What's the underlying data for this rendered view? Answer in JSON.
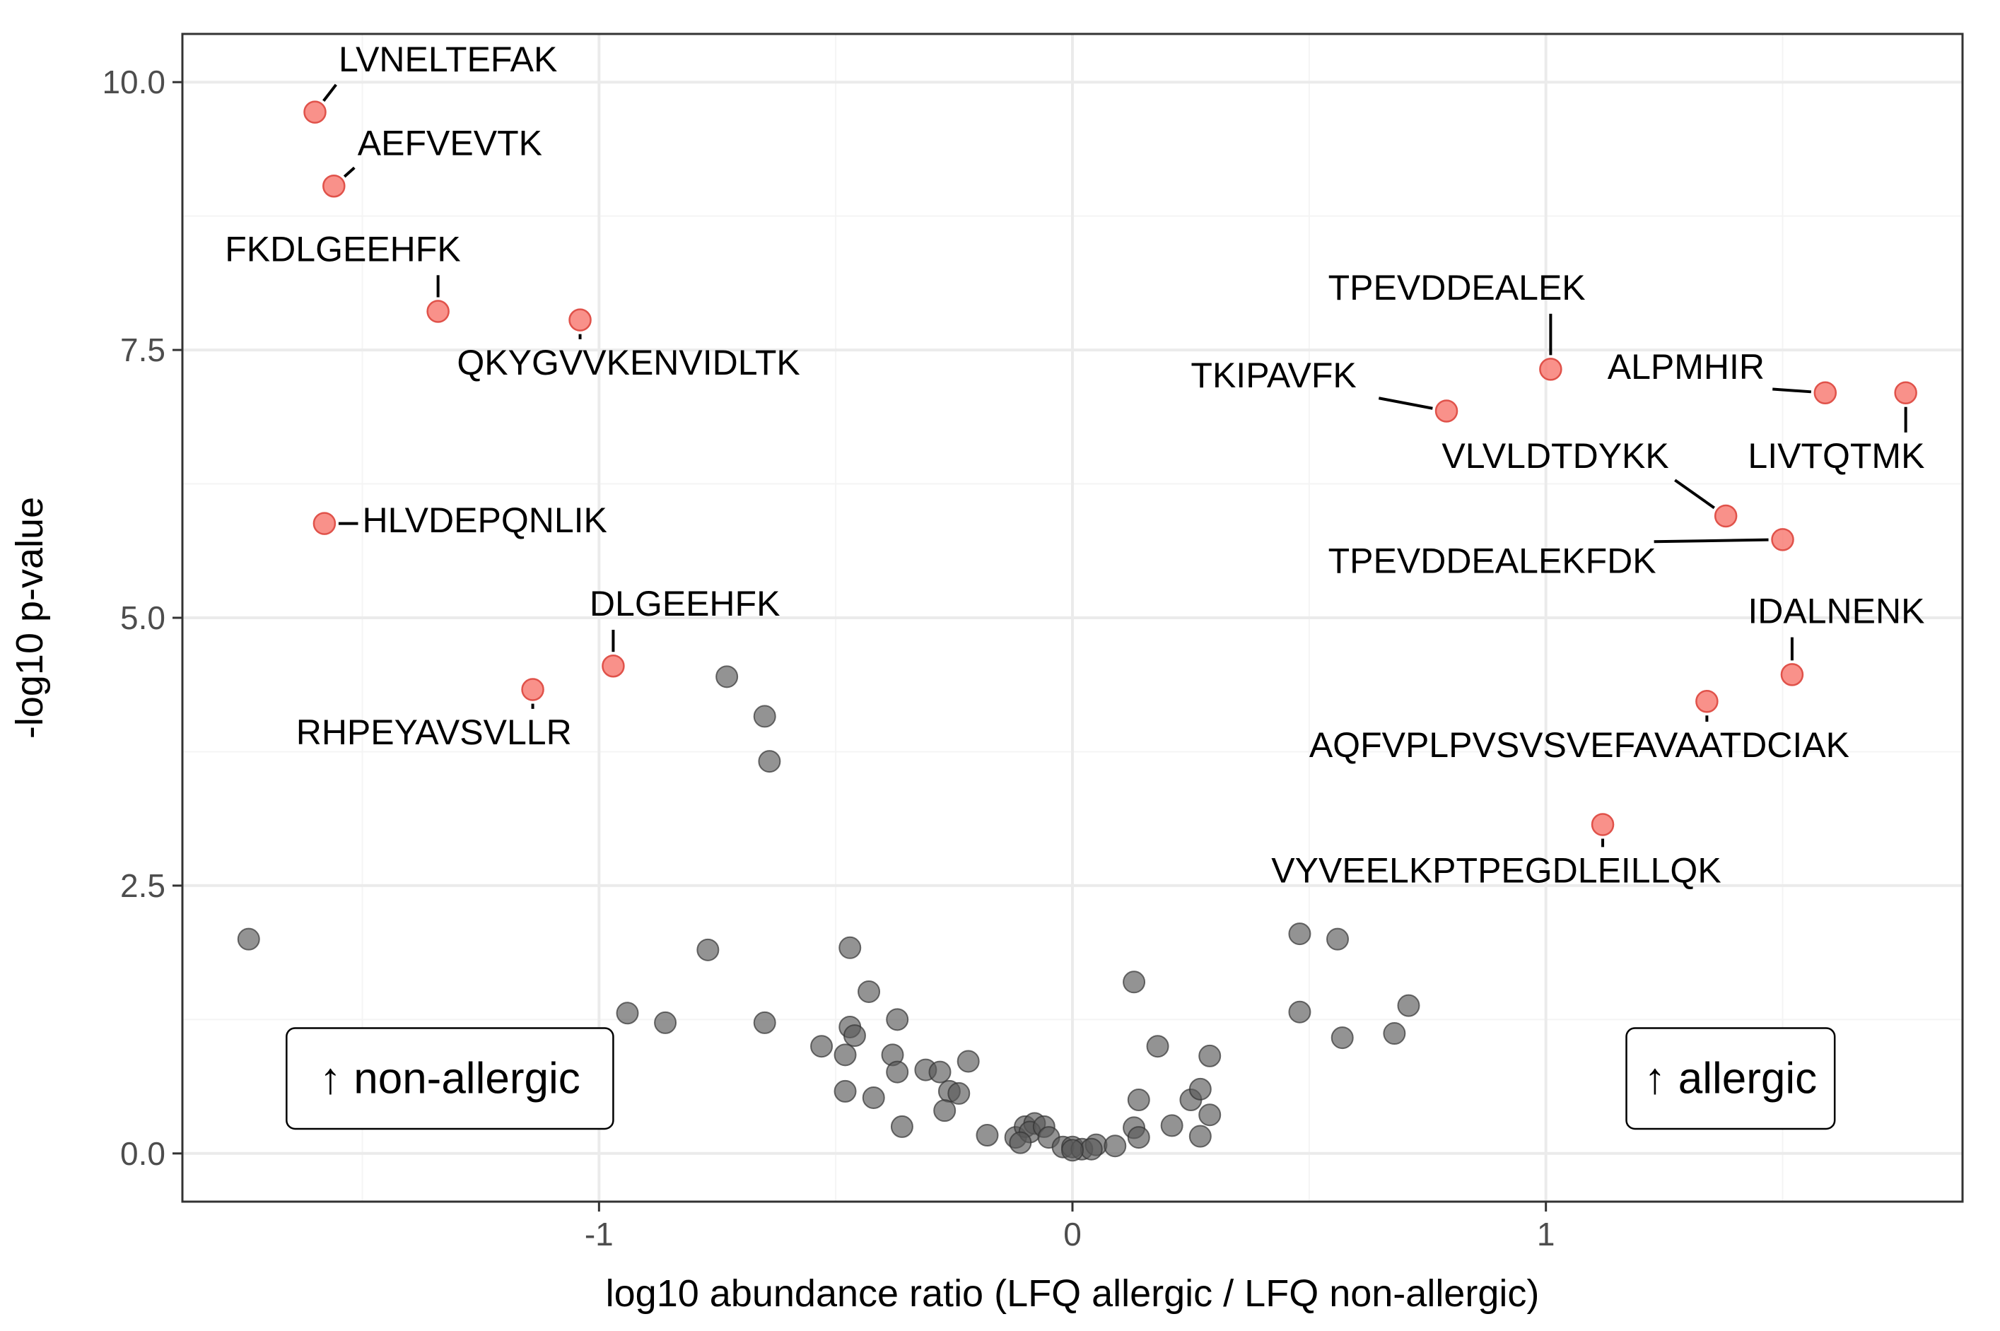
{
  "chart_data": {
    "type": "scatter",
    "title": "",
    "xlabel": "log10 abundance ratio (LFQ allergic / LFQ non-allergic)",
    "ylabel": "-log10 p-value",
    "xlim": [
      -1.88,
      1.88
    ],
    "ylim": [
      -0.45,
      10.45
    ],
    "x_ticks": [
      -1,
      0,
      1
    ],
    "x_tick_labels": [
      "-1",
      "0",
      "1"
    ],
    "y_ticks": [
      0,
      2.5,
      5,
      7.5,
      10
    ],
    "y_tick_labels": [
      "0.0",
      "2.5",
      "5.0",
      "7.5",
      "10.0"
    ],
    "grid": true,
    "colors": {
      "significant": "#f8766d",
      "significant_stroke": "#e0524a",
      "nonsignificant": "#595959",
      "nonsignificant_stroke": "#333333",
      "grid_major": "#ebebeb",
      "grid_minor": "#f4f4f4",
      "panel_border": "#333333"
    },
    "annotations": [
      {
        "text": "↑ non-allergic",
        "anchor": [
          -1.66,
          0.23,
          -0.97,
          1.17
        ]
      },
      {
        "text": "↑ allergic",
        "anchor": [
          1.17,
          0.23,
          1.61,
          1.17
        ]
      }
    ],
    "significant": [
      {
        "label": "LVNELTEFAK",
        "x": -1.6,
        "y": 9.72,
        "label_x": -1.55,
        "label_y": 10.1,
        "align": "start"
      },
      {
        "label": "AEFVEVTK",
        "x": -1.56,
        "y": 9.03,
        "label_x": -1.51,
        "label_y": 9.32,
        "align": "start"
      },
      {
        "label": "FKDLGEEHFK",
        "x": -1.34,
        "y": 7.86,
        "label_x": -1.79,
        "label_y": 8.33,
        "align": "start"
      },
      {
        "label": "QKYGVVKENVIDLTK",
        "x": -1.04,
        "y": 7.78,
        "label_x": -1.3,
        "label_y": 7.27,
        "align": "start"
      },
      {
        "label": "HLVDEPQNLIK",
        "x": -1.58,
        "y": 5.88,
        "label_x": -1.5,
        "label_y": 5.8,
        "align": "start"
      },
      {
        "label": "DLGEEHFK",
        "x": -0.97,
        "y": 4.55,
        "label_x": -1.02,
        "label_y": 5.02,
        "align": "start"
      },
      {
        "label": "RHPEYAVSVLLR",
        "x": -1.14,
        "y": 4.33,
        "label_x": -1.64,
        "label_y": 3.82,
        "align": "start"
      },
      {
        "label": "TPEVDDEALEK",
        "x": 1.01,
        "y": 7.32,
        "label_x": 0.54,
        "label_y": 7.97,
        "align": "start"
      },
      {
        "label": "TKIPAVFK",
        "x": 0.79,
        "y": 6.93,
        "label_x": 0.25,
        "label_y": 7.15,
        "align": "start"
      },
      {
        "label": "ALPMHIR",
        "x": 1.59,
        "y": 7.1,
        "label_x": 1.13,
        "label_y": 7.23,
        "align": "start"
      },
      {
        "label": "LIVTQTMK",
        "x": 1.76,
        "y": 7.1,
        "label_x": 1.8,
        "label_y": 6.4,
        "align": "end"
      },
      {
        "label": "VLVLDTDYKK",
        "x": 1.38,
        "y": 5.95,
        "label_x": 0.78,
        "label_y": 6.4,
        "align": "start"
      },
      {
        "label": "TPEVDDEALEKFDK",
        "x": 1.5,
        "y": 5.73,
        "label_x": 0.54,
        "label_y": 5.42,
        "align": "start"
      },
      {
        "label": "IDALNENK",
        "x": 1.52,
        "y": 4.47,
        "label_x": 1.8,
        "label_y": 4.95,
        "align": "end"
      },
      {
        "label": "AQFVPLPVSVSVEFAVAATDCIAK",
        "x": 1.34,
        "y": 4.22,
        "label_x": 0.5,
        "label_y": 3.7,
        "align": "start"
      },
      {
        "label": "VYVEELKPTPEGDLEILLQK",
        "x": 1.12,
        "y": 3.07,
        "label_x": 0.42,
        "label_y": 2.53,
        "align": "start"
      }
    ],
    "nonsignificant": [
      [
        -1.74,
        2.0
      ],
      [
        -0.73,
        4.45
      ],
      [
        -0.65,
        4.08
      ],
      [
        -0.64,
        3.66
      ],
      [
        -0.77,
        1.9
      ],
      [
        -0.47,
        1.92
      ],
      [
        -0.94,
        1.31
      ],
      [
        -0.86,
        1.22
      ],
      [
        -0.65,
        1.22
      ],
      [
        -0.43,
        1.51
      ],
      [
        -0.37,
        1.25
      ],
      [
        -0.47,
        1.18
      ],
      [
        -0.46,
        1.1
      ],
      [
        -0.53,
        1.0
      ],
      [
        -0.48,
        0.92
      ],
      [
        -0.48,
        0.58
      ],
      [
        -0.38,
        0.92
      ],
      [
        -0.37,
        0.76
      ],
      [
        -0.31,
        0.78
      ],
      [
        -0.28,
        0.76
      ],
      [
        -0.22,
        0.86
      ],
      [
        -0.26,
        0.58
      ],
      [
        -0.24,
        0.56
      ],
      [
        -0.42,
        0.52
      ],
      [
        -0.36,
        0.25
      ],
      [
        -0.27,
        0.4
      ],
      [
        -0.18,
        0.17
      ],
      [
        -0.12,
        0.15
      ],
      [
        -0.1,
        0.25
      ],
      [
        -0.08,
        0.28
      ],
      [
        -0.09,
        0.2
      ],
      [
        -0.06,
        0.25
      ],
      [
        -0.05,
        0.15
      ],
      [
        -0.11,
        0.1
      ],
      [
        -0.02,
        0.06
      ],
      [
        0.0,
        0.06
      ],
      [
        0.02,
        0.04
      ],
      [
        0.05,
        0.08
      ],
      [
        0.04,
        0.04
      ],
      [
        0.09,
        0.07
      ],
      [
        0.0,
        0.03
      ],
      [
        0.13,
        1.6
      ],
      [
        0.18,
        1.0
      ],
      [
        0.13,
        0.24
      ],
      [
        0.14,
        0.5
      ],
      [
        0.14,
        0.15
      ],
      [
        0.21,
        0.26
      ],
      [
        0.25,
        0.5
      ],
      [
        0.27,
        0.6
      ],
      [
        0.29,
        0.91
      ],
      [
        0.29,
        0.36
      ],
      [
        0.27,
        0.16
      ],
      [
        0.48,
        2.05
      ],
      [
        0.56,
        2.0
      ],
      [
        0.48,
        1.32
      ],
      [
        0.57,
        1.08
      ],
      [
        0.68,
        1.12
      ],
      [
        0.71,
        1.38
      ]
    ]
  }
}
